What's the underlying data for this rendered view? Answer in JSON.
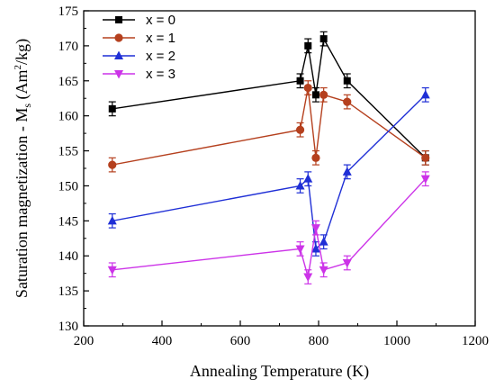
{
  "chart_data": {
    "type": "line",
    "title": "",
    "xlabel": "Annealing Temperature (K)",
    "ylabel": {
      "main": "Saturation magnetization - M",
      "sub": "s",
      "unit_open": " (Am",
      "unit_sup": "2",
      "unit_close": "/kg)"
    },
    "xlim": [
      200,
      1200
    ],
    "ylim": [
      130,
      175
    ],
    "xticks": [
      200,
      400,
      600,
      800,
      1000,
      1200
    ],
    "yticks": [
      130,
      135,
      140,
      145,
      150,
      155,
      160,
      165,
      170,
      175
    ],
    "grid": false,
    "legend_position": "top-left",
    "series": [
      {
        "name": "x = 0",
        "color": "#000000",
        "marker": "square",
        "points": [
          [
            273,
            161
          ],
          [
            753,
            165
          ],
          [
            773,
            170
          ],
          [
            793,
            163
          ],
          [
            813,
            171
          ],
          [
            873,
            165
          ],
          [
            1073,
            154
          ]
        ],
        "error": 1
      },
      {
        "name": "x = 1",
        "color": "#b5401e",
        "marker": "circle",
        "points": [
          [
            273,
            153
          ],
          [
            753,
            158
          ],
          [
            773,
            164
          ],
          [
            793,
            154
          ],
          [
            813,
            163
          ],
          [
            873,
            162
          ],
          [
            1073,
            154
          ]
        ],
        "error": 1
      },
      {
        "name": "x = 2",
        "color": "#1f2fd6",
        "marker": "triangle-up",
        "points": [
          [
            273,
            145
          ],
          [
            753,
            150
          ],
          [
            773,
            151
          ],
          [
            793,
            141
          ],
          [
            813,
            142
          ],
          [
            873,
            152
          ],
          [
            1073,
            163
          ]
        ],
        "error": 1
      },
      {
        "name": "x = 3",
        "color": "#cc33e8",
        "marker": "triangle-down",
        "points": [
          [
            273,
            138
          ],
          [
            753,
            141
          ],
          [
            773,
            137
          ],
          [
            793,
            144
          ],
          [
            813,
            138
          ],
          [
            873,
            139
          ],
          [
            1073,
            151
          ]
        ],
        "error": 1
      }
    ]
  }
}
